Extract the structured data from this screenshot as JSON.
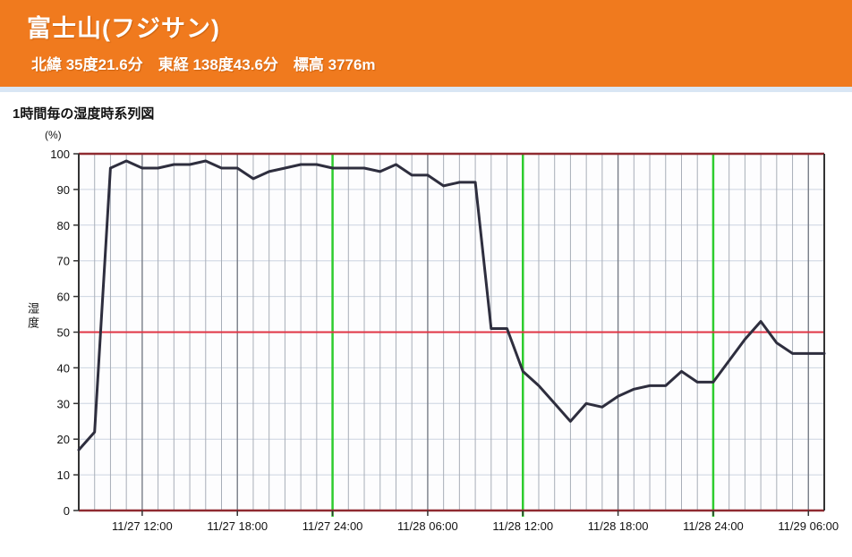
{
  "header": {
    "title": "富士山(フジサン)",
    "subtitle": "北緯 35度21.6分　東経 138度43.6分　標高 3776m",
    "bg_color": "#F07A1E",
    "text_color": "#FFFFFF"
  },
  "chart": {
    "title": "1時間毎の湿度時系列図",
    "unit_label": "(%)",
    "y_axis_label": "湿度"
  },
  "chart_data": {
    "type": "line",
    "title": "1時間毎の湿度時系列図",
    "ylabel": "湿度",
    "y_unit": "(%)",
    "ylim": [
      0,
      100
    ],
    "y_ticks": [
      0,
      10,
      20,
      30,
      40,
      50,
      60,
      70,
      80,
      90,
      100
    ],
    "x_interval": "1 hour",
    "values": [
      17,
      22,
      96,
      98,
      96,
      96,
      97,
      97,
      98,
      96,
      96,
      93,
      95,
      96,
      97,
      97,
      96,
      96,
      96,
      95,
      97,
      94,
      94,
      91,
      92,
      92,
      51,
      51,
      39,
      35,
      30,
      25,
      30,
      29,
      32,
      34,
      35,
      35,
      39,
      36,
      36,
      42,
      48,
      53,
      47,
      44,
      44,
      44
    ],
    "x_ticks": [
      {
        "hour": 4,
        "label": "11/27 12:00"
      },
      {
        "hour": 10,
        "label": "11/27 18:00"
      },
      {
        "hour": 16,
        "label": "11/27 24:00"
      },
      {
        "hour": 22,
        "label": "11/28 06:00"
      },
      {
        "hour": 28,
        "label": "11/28 12:00"
      },
      {
        "hour": 34,
        "label": "11/28 18:00"
      },
      {
        "hour": 40,
        "label": "11/28 24:00"
      },
      {
        "hour": 46,
        "label": "11/29 06:00"
      }
    ],
    "green_line_hours": [
      16,
      28,
      40
    ],
    "red_line_values": [
      0,
      50,
      100
    ],
    "grid": true,
    "legend": "none",
    "colors": {
      "line": "#2e2e3e",
      "green_line": "#2ecc2e",
      "red_major": "#8f2a30",
      "red_mid": "#e03444",
      "grid_vertical_minor": "#a8aeb8",
      "grid_vertical_major": "#787d87",
      "grid_horizontal": "#ccd4e0",
      "axis": "#333333"
    }
  }
}
